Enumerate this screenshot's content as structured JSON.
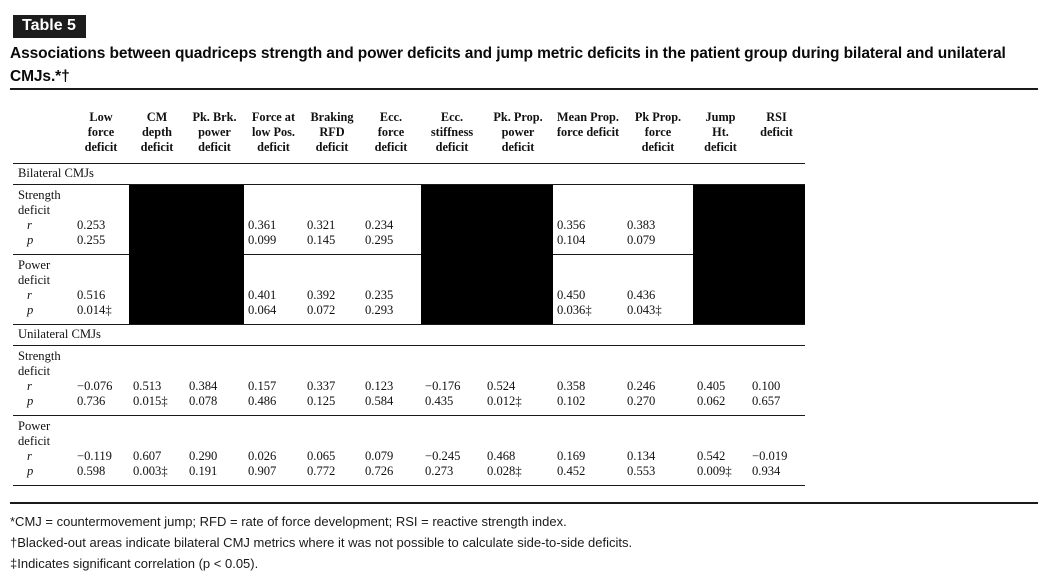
{
  "table_label": "Table 5",
  "title": "Associations between quadriceps strength and power deficits and jump metric deficits in the patient group during bilateral and unilateral CMJs.*†",
  "colors": {
    "badge_bg": "#1c1c1c",
    "blackout": "#000000",
    "text": "#000000"
  },
  "sub_labels": {
    "r": "r",
    "p": "p"
  },
  "columns": [
    "Low\nforce\ndeficit",
    "CM\ndepth\ndeficit",
    "Pk. Brk.\npower\ndeficit",
    "Force at\nlow Pos.\ndeficit",
    "Braking\nRFD\ndeficit",
    "Ecc.\nforce\ndeficit",
    "Ecc.\nstiffness\ndeficit",
    "Pk. Prop.\npower\ndeficit",
    "Mean Prop.\nforce deficit",
    "Pk Prop.\nforce\ndeficit",
    "Jump\nHt.\ndeficit",
    "RSI\ndeficit"
  ],
  "sections": [
    {
      "label": "Bilateral CMJs",
      "blacked_columns": [
        1,
        2,
        6,
        7,
        10,
        11
      ],
      "blocks": [
        {
          "label": "Strength\ndeficit",
          "r": [
            "0.253",
            "",
            "",
            "0.361",
            "0.321",
            "0.234",
            "",
            "",
            "0.356",
            "0.383",
            "",
            ""
          ],
          "p": [
            "0.255",
            "",
            "",
            "0.099",
            "0.145",
            "0.295",
            "",
            "",
            "0.104",
            "0.079",
            "",
            ""
          ]
        },
        {
          "label": "Power\ndeficit",
          "r": [
            "0.516",
            "",
            "",
            "0.401",
            "0.392",
            "0.235",
            "",
            "",
            "0.450",
            "0.436",
            "",
            ""
          ],
          "p": [
            "0.014‡",
            "",
            "",
            "0.064",
            "0.072",
            "0.293",
            "",
            "",
            "0.036‡",
            "0.043‡",
            "",
            ""
          ]
        }
      ]
    },
    {
      "label": "Unilateral CMJs",
      "blacked_columns": [],
      "blocks": [
        {
          "label": "Strength\ndeficit",
          "r": [
            "−0.076",
            "0.513",
            "0.384",
            "0.157",
            "0.337",
            "0.123",
            "−0.176",
            "0.524",
            "0.358",
            "0.246",
            "0.405",
            "0.100"
          ],
          "p": [
            "0.736",
            "0.015‡",
            "0.078",
            "0.486",
            "0.125",
            "0.584",
            "0.435",
            "0.012‡",
            "0.102",
            "0.270",
            "0.062",
            "0.657"
          ]
        },
        {
          "label": "Power\ndeficit",
          "r": [
            "−0.119",
            "0.607",
            "0.290",
            "0.026",
            "0.065",
            "0.079",
            "−0.245",
            "0.468",
            "0.169",
            "0.134",
            "0.542",
            "−0.019"
          ],
          "p": [
            "0.598",
            "0.003‡",
            "0.191",
            "0.907",
            "0.772",
            "0.726",
            "0.273",
            "0.028‡",
            "0.452",
            "0.553",
            "0.009‡",
            "0.934"
          ]
        }
      ]
    }
  ],
  "footnotes": [
    "*CMJ = countermovement jump; RFD = rate of force development; RSI = reactive strength index.",
    "†Blacked-out areas indicate bilateral CMJ metrics where it was not possible to calculate side-to-side deficits.",
    "‡Indicates significant correlation (p < 0.05)."
  ]
}
